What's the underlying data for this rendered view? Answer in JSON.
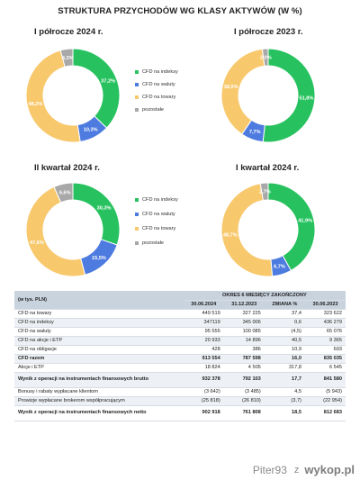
{
  "header": {
    "title": "STRUKTURA PRZYCHODÓW WG KLASY AKTYWÓW (W %)"
  },
  "colors": {
    "indeksy": "#27c25f",
    "waluty": "#4d7be0",
    "towary": "#f8c86c",
    "pozostale": "#a8a8a8"
  },
  "legend": {
    "items": [
      "CFD na indeksy",
      "CFD na waluty",
      "CFD na towary",
      "pozostałe"
    ]
  },
  "chart_data": [
    {
      "type": "pie",
      "title": "I półrocze 2024 r.",
      "categories": [
        "CFD na indeksy",
        "CFD na waluty",
        "CFD na towary",
        "pozostałe"
      ],
      "values": [
        37.2,
        10.3,
        48.2,
        4.3
      ],
      "labels": [
        "37,2%",
        "10,3%",
        "48,2%",
        "4,3%"
      ]
    },
    {
      "type": "pie",
      "title": "I półrocze 2023 r.",
      "categories": [
        "CFD na indeksy",
        "CFD na waluty",
        "CFD na towary",
        "pozostałe"
      ],
      "values": [
        51.8,
        7.7,
        38.5,
        2.0
      ],
      "labels": [
        "51,8%",
        "7,7%",
        "38,5%",
        "2,0%"
      ]
    },
    {
      "type": "pie",
      "title": "II kwartał 2024 r.",
      "categories": [
        "CFD na indeksy",
        "CFD na waluty",
        "CFD na towary",
        "pozostałe"
      ],
      "values": [
        30.3,
        15.5,
        47.6,
        6.6
      ],
      "labels": [
        "30,3%",
        "15,5%",
        "47,6%",
        "6,6%"
      ]
    },
    {
      "type": "pie",
      "title": "I kwartał 2024 r.",
      "categories": [
        "CFD na indeksy",
        "CFD na waluty",
        "CFD na towary",
        "pozostałe"
      ],
      "values": [
        41.9,
        6.7,
        48.7,
        2.7
      ],
      "labels": [
        "41,9%",
        "6,7%",
        "48,7%",
        "2,7%"
      ]
    }
  ],
  "table": {
    "unit_header": "(w tys. PLN)",
    "group_header": "OKRES 6 MIESIĘCY ZAKOŃCZONY",
    "columns": [
      "30.06.2024",
      "31.12.2023",
      "ZMIANA %",
      "30.06.2023"
    ],
    "rows": [
      {
        "label": "CFD na towary",
        "values": [
          "449 519",
          "327 225",
          "37,4",
          "323 622"
        ]
      },
      {
        "label": "CFD na indeksy",
        "values": [
          "347119",
          "345 006",
          "0,6",
          "436 279"
        ]
      },
      {
        "label": "CFD na waluty",
        "values": [
          "95 555",
          "100 085",
          "(4,5)",
          "65 076"
        ]
      },
      {
        "label": "CFD na akcje i ETP",
        "values": [
          "20 933",
          "14 896",
          "40,5",
          "9 365"
        ]
      },
      {
        "label": "CFD na obligacje",
        "values": [
          "428",
          "386",
          "10,9",
          "693"
        ]
      },
      {
        "label": "CFD razem",
        "values": [
          "913 554",
          "787 598",
          "16,0",
          "835 035"
        ]
      },
      {
        "label": "Akcje i ETP",
        "values": [
          "18 824",
          "4 505",
          "317,8",
          "6 545"
        ]
      },
      {
        "label": "Wynik z operacji na instrumentach finansowych brutto",
        "values": [
          "932 378",
          "792 103",
          "17,7",
          "841 580"
        ]
      },
      {
        "label": "Bonusy i rabaty wypłacane klientom",
        "values": [
          "(3 642)",
          "(3 485)",
          "4,5",
          "(5 943)"
        ]
      },
      {
        "label": "Prowizje wypłacane brokerom współpracującym",
        "values": [
          "(25 818)",
          "(26 810)",
          "(3,7)",
          "(22 954)"
        ]
      },
      {
        "label": "Wynik z operacji na instrumentach finansowych netto",
        "values": [
          "902 918",
          "761 808",
          "18,5",
          "812 683"
        ]
      }
    ]
  },
  "watermark": {
    "user": "Piter93",
    "separator": "z",
    "brand": "wykop.pl"
  }
}
